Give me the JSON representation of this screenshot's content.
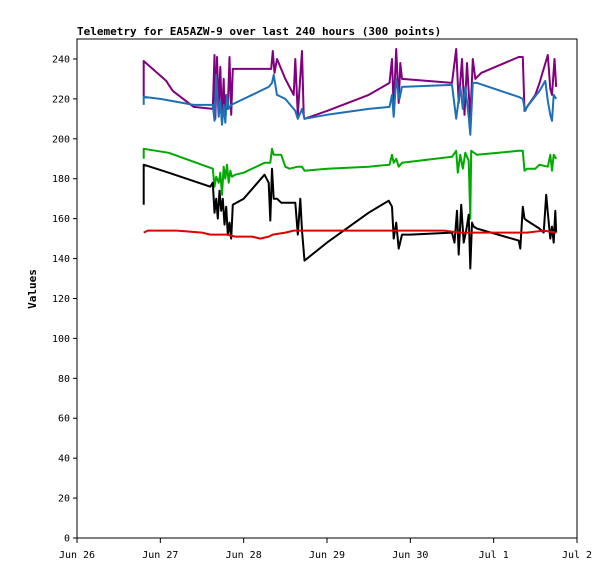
{
  "chart_data": {
    "type": "line",
    "title": "Telemetry for EA5AZW-9 over last 240 hours (300 points)",
    "xlabel": "",
    "ylabel": "Values",
    "ylim": [
      0,
      250
    ],
    "xlim": [
      0,
      6
    ],
    "x_ticks": [
      {
        "x": 0,
        "label": "Jun 26"
      },
      {
        "x": 1,
        "label": "Jun 27"
      },
      {
        "x": 2,
        "label": "Jun 28"
      },
      {
        "x": 3,
        "label": "Jun 29"
      },
      {
        "x": 4,
        "label": "Jun 30"
      },
      {
        "x": 5,
        "label": "Jul 1"
      },
      {
        "x": 6,
        "label": "Jul 2"
      }
    ],
    "y_ticks": [
      0,
      20,
      40,
      60,
      80,
      100,
      120,
      140,
      160,
      180,
      200,
      220,
      240
    ],
    "grid": false,
    "series": [
      {
        "color": "#800080",
        "points": [
          [
            0.8,
            221
          ],
          [
            0.8,
            239
          ],
          [
            1.07,
            229
          ],
          [
            1.15,
            224
          ],
          [
            1.4,
            216
          ],
          [
            1.63,
            215
          ],
          [
            1.65,
            242
          ],
          [
            1.66,
            210
          ],
          [
            1.68,
            241
          ],
          [
            1.7,
            215
          ],
          [
            1.72,
            236
          ],
          [
            1.74,
            210
          ],
          [
            1.76,
            230
          ],
          [
            1.77,
            212
          ],
          [
            1.79,
            222
          ],
          [
            1.81,
            215
          ],
          [
            1.83,
            241
          ],
          [
            1.85,
            212
          ],
          [
            1.87,
            235
          ],
          [
            2.0,
            235
          ],
          [
            2.25,
            235
          ],
          [
            2.33,
            235
          ],
          [
            2.35,
            244
          ],
          [
            2.37,
            233
          ],
          [
            2.4,
            240
          ],
          [
            2.5,
            230
          ],
          [
            2.6,
            222
          ],
          [
            2.62,
            240
          ],
          [
            2.65,
            212
          ],
          [
            2.7,
            244
          ],
          [
            2.72,
            212
          ],
          [
            2.73,
            210
          ],
          [
            3.0,
            214
          ],
          [
            3.5,
            222
          ],
          [
            3.75,
            228
          ],
          [
            3.78,
            240
          ],
          [
            3.8,
            215
          ],
          [
            3.83,
            245
          ],
          [
            3.86,
            218
          ],
          [
            3.88,
            238
          ],
          [
            3.9,
            230
          ],
          [
            4.5,
            228
          ],
          [
            4.55,
            245
          ],
          [
            4.58,
            218
          ],
          [
            4.62,
            240
          ],
          [
            4.65,
            212
          ],
          [
            4.68,
            238
          ],
          [
            4.72,
            210
          ],
          [
            4.75,
            240
          ],
          [
            4.78,
            230
          ],
          [
            4.85,
            233
          ],
          [
            5.3,
            241
          ],
          [
            5.35,
            241
          ],
          [
            5.37,
            214
          ],
          [
            5.4,
            216
          ],
          [
            5.5,
            222
          ],
          [
            5.55,
            228
          ],
          [
            5.65,
            242
          ],
          [
            5.68,
            225
          ],
          [
            5.7,
            222
          ],
          [
            5.73,
            240
          ],
          [
            5.75,
            226
          ]
        ]
      },
      {
        "color": "#1f6fb5",
        "points": [
          [
            0.8,
            217
          ],
          [
            0.8,
            221
          ],
          [
            1.0,
            220
          ],
          [
            1.4,
            217
          ],
          [
            1.63,
            217
          ],
          [
            1.65,
            209
          ],
          [
            1.67,
            232
          ],
          [
            1.7,
            211
          ],
          [
            1.72,
            219
          ],
          [
            1.74,
            207
          ],
          [
            1.76,
            217
          ],
          [
            1.78,
            208
          ],
          [
            1.8,
            222
          ],
          [
            1.82,
            215
          ],
          [
            1.85,
            217
          ],
          [
            2.3,
            226
          ],
          [
            2.34,
            228
          ],
          [
            2.36,
            232
          ],
          [
            2.4,
            222
          ],
          [
            2.5,
            220
          ],
          [
            2.62,
            214
          ],
          [
            2.65,
            210
          ],
          [
            2.7,
            215
          ],
          [
            2.73,
            210
          ],
          [
            3.0,
            212
          ],
          [
            3.5,
            215
          ],
          [
            3.75,
            216
          ],
          [
            3.78,
            222
          ],
          [
            3.8,
            211
          ],
          [
            3.83,
            230
          ],
          [
            3.87,
            220
          ],
          [
            3.9,
            226
          ],
          [
            4.5,
            227
          ],
          [
            4.55,
            210
          ],
          [
            4.6,
            226
          ],
          [
            4.63,
            215
          ],
          [
            4.66,
            226
          ],
          [
            4.7,
            211
          ],
          [
            4.72,
            202
          ],
          [
            4.75,
            228
          ],
          [
            4.8,
            228
          ],
          [
            5.3,
            221
          ],
          [
            5.35,
            220
          ],
          [
            5.38,
            214
          ],
          [
            5.4,
            216
          ],
          [
            5.55,
            224
          ],
          [
            5.62,
            229
          ],
          [
            5.65,
            219
          ],
          [
            5.68,
            212
          ],
          [
            5.7,
            209
          ],
          [
            5.72,
            222
          ],
          [
            5.75,
            220
          ]
        ]
      },
      {
        "color": "#00aa00",
        "points": [
          [
            0.8,
            190
          ],
          [
            0.8,
            195
          ],
          [
            1.1,
            193
          ],
          [
            1.63,
            185
          ],
          [
            1.65,
            176
          ],
          [
            1.67,
            181
          ],
          [
            1.7,
            178
          ],
          [
            1.72,
            183
          ],
          [
            1.74,
            172
          ],
          [
            1.76,
            186
          ],
          [
            1.78,
            180
          ],
          [
            1.8,
            187
          ],
          [
            1.82,
            178
          ],
          [
            1.84,
            184
          ],
          [
            1.86,
            181
          ],
          [
            1.9,
            182
          ],
          [
            2.0,
            183
          ],
          [
            2.25,
            188
          ],
          [
            2.32,
            188
          ],
          [
            2.34,
            195
          ],
          [
            2.36,
            192
          ],
          [
            2.45,
            192
          ],
          [
            2.5,
            186
          ],
          [
            2.55,
            185
          ],
          [
            2.65,
            186
          ],
          [
            2.7,
            186
          ],
          [
            2.73,
            184
          ],
          [
            3.0,
            185
          ],
          [
            3.5,
            186
          ],
          [
            3.75,
            187
          ],
          [
            3.78,
            192
          ],
          [
            3.8,
            188
          ],
          [
            3.83,
            190
          ],
          [
            3.86,
            186
          ],
          [
            3.9,
            188
          ],
          [
            4.5,
            191
          ],
          [
            4.55,
            194
          ],
          [
            4.57,
            183
          ],
          [
            4.6,
            192
          ],
          [
            4.63,
            185
          ],
          [
            4.66,
            193
          ],
          [
            4.7,
            189
          ],
          [
            4.72,
            160
          ],
          [
            4.73,
            194
          ],
          [
            4.8,
            192
          ],
          [
            5.3,
            194
          ],
          [
            5.35,
            194
          ],
          [
            5.37,
            184
          ],
          [
            5.4,
            185
          ],
          [
            5.5,
            185
          ],
          [
            5.55,
            187
          ],
          [
            5.65,
            186
          ],
          [
            5.68,
            192
          ],
          [
            5.7,
            184
          ],
          [
            5.72,
            192
          ],
          [
            5.75,
            190
          ]
        ]
      },
      {
        "color": "#000000",
        "points": [
          [
            0.8,
            167
          ],
          [
            0.8,
            187
          ],
          [
            1.1,
            183
          ],
          [
            1.6,
            176
          ],
          [
            1.63,
            178
          ],
          [
            1.65,
            163
          ],
          [
            1.67,
            170
          ],
          [
            1.69,
            160
          ],
          [
            1.71,
            174
          ],
          [
            1.73,
            164
          ],
          [
            1.75,
            170
          ],
          [
            1.77,
            157
          ],
          [
            1.79,
            166
          ],
          [
            1.81,
            152
          ],
          [
            1.83,
            158
          ],
          [
            1.85,
            150
          ],
          [
            1.87,
            167
          ],
          [
            2.0,
            170
          ],
          [
            2.25,
            182
          ],
          [
            2.3,
            178
          ],
          [
            2.32,
            159
          ],
          [
            2.34,
            185
          ],
          [
            2.36,
            170
          ],
          [
            2.4,
            170
          ],
          [
            2.45,
            168
          ],
          [
            2.55,
            168
          ],
          [
            2.62,
            168
          ],
          [
            2.65,
            152
          ],
          [
            2.68,
            170
          ],
          [
            2.7,
            154
          ],
          [
            2.73,
            139
          ],
          [
            3.0,
            148
          ],
          [
            3.5,
            163
          ],
          [
            3.74,
            169
          ],
          [
            3.78,
            166
          ],
          [
            3.8,
            150
          ],
          [
            3.83,
            158
          ],
          [
            3.86,
            145
          ],
          [
            3.9,
            152
          ],
          [
            4.0,
            152
          ],
          [
            4.5,
            153
          ],
          [
            4.53,
            148
          ],
          [
            4.56,
            164
          ],
          [
            4.58,
            142
          ],
          [
            4.61,
            167
          ],
          [
            4.64,
            148
          ],
          [
            4.67,
            154
          ],
          [
            4.7,
            162
          ],
          [
            4.72,
            135
          ],
          [
            4.74,
            158
          ],
          [
            4.76,
            156
          ],
          [
            4.8,
            155
          ],
          [
            5.3,
            149
          ],
          [
            5.32,
            145
          ],
          [
            5.35,
            166
          ],
          [
            5.37,
            160
          ],
          [
            5.4,
            159
          ],
          [
            5.55,
            155
          ],
          [
            5.6,
            153
          ],
          [
            5.63,
            172
          ],
          [
            5.65,
            163
          ],
          [
            5.68,
            150
          ],
          [
            5.7,
            156
          ],
          [
            5.72,
            148
          ],
          [
            5.74,
            164
          ],
          [
            5.75,
            153
          ]
        ]
      },
      {
        "color": "#e00000",
        "points": [
          [
            0.8,
            153
          ],
          [
            0.85,
            154
          ],
          [
            1.0,
            154
          ],
          [
            1.2,
            154
          ],
          [
            1.5,
            153
          ],
          [
            1.6,
            152
          ],
          [
            1.8,
            152
          ],
          [
            1.9,
            151
          ],
          [
            2.0,
            151
          ],
          [
            2.1,
            151
          ],
          [
            2.2,
            150
          ],
          [
            2.3,
            151
          ],
          [
            2.35,
            152
          ],
          [
            2.5,
            153
          ],
          [
            2.6,
            154
          ],
          [
            2.7,
            154
          ],
          [
            3.0,
            154
          ],
          [
            3.3,
            154
          ],
          [
            3.6,
            154
          ],
          [
            3.8,
            154
          ],
          [
            4.0,
            154
          ],
          [
            4.2,
            154
          ],
          [
            4.4,
            154
          ],
          [
            4.6,
            153
          ],
          [
            4.8,
            153
          ],
          [
            5.0,
            153
          ],
          [
            5.2,
            153
          ],
          [
            5.4,
            153
          ],
          [
            5.6,
            154
          ],
          [
            5.75,
            153
          ]
        ]
      }
    ]
  }
}
